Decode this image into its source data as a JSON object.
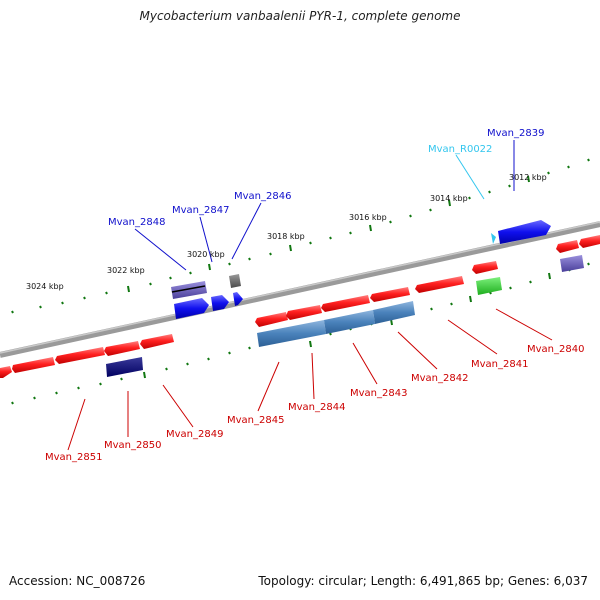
{
  "title": "Mycobacterium vanbaalenii PYR-1, complete genome",
  "accession": "Accession: NC_008726",
  "summary": "Topology: circular; Length: 6,491,865 bp; Genes: 6,037",
  "colors": {
    "cds_red": "#ff1f1f",
    "rna_cyan": "#33c6ee",
    "blue_label": "#1010cc",
    "red_label": "#cc0000",
    "backbone": "#8a8a8a",
    "ticks": "#117711"
  },
  "scale_labels": [
    "3024 kbp",
    "3022 kbp",
    "3020 kbp",
    "3018 kbp",
    "3016 kbp",
    "3014 kbp",
    "3012 kbp"
  ],
  "upper_labels": [
    {
      "text": "Mvan_2848",
      "kind": "blue"
    },
    {
      "text": "Mvan_2847",
      "kind": "blue"
    },
    {
      "text": "Mvan_2846",
      "kind": "blue"
    },
    {
      "text": "Mvan_R0022",
      "kind": "cyan"
    },
    {
      "text": "Mvan_2839",
      "kind": "blue"
    }
  ],
  "lower_labels": [
    {
      "text": "Mvan_2851"
    },
    {
      "text": "Mvan_2850"
    },
    {
      "text": "Mvan_2849"
    },
    {
      "text": "Mvan_2845"
    },
    {
      "text": "Mvan_2844"
    },
    {
      "text": "Mvan_2843"
    },
    {
      "text": "Mvan_2842"
    },
    {
      "text": "Mvan_2841"
    },
    {
      "text": "Mvan_2840"
    }
  ]
}
